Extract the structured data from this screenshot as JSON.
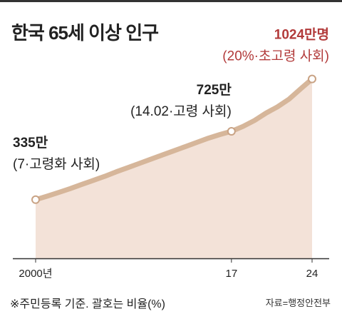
{
  "header": {
    "title": "한국 65세 이상 인구"
  },
  "chart_data": {
    "type": "area",
    "title": "한국 65세 이상 인구",
    "x": [
      2000,
      2001,
      2002,
      2003,
      2004,
      2005,
      2006,
      2007,
      2008,
      2009,
      2010,
      2011,
      2012,
      2013,
      2014,
      2015,
      2016,
      2017,
      2018,
      2019,
      2020,
      2021,
      2022,
      2023,
      2024
    ],
    "x_ticks": [
      {
        "x": 2000,
        "label": "2000년"
      },
      {
        "x": 2017,
        "label": "17"
      },
      {
        "x": 2024,
        "label": "24"
      }
    ],
    "series": [
      {
        "values": [
          335,
          355,
          376,
          398,
          422,
          445,
          468,
          494,
          518,
          542,
          566,
          590,
          614,
          638,
          662,
          686,
          707,
          725,
          753,
          787,
          829,
          865,
          909,
          967,
          1024
        ]
      }
    ],
    "units": "만명",
    "xlim": [
      2000,
      2024
    ],
    "ylim": [
      0,
      1100
    ],
    "grid": false,
    "legend": "none",
    "annotations": [
      {
        "x": 2000,
        "value_text": "335만",
        "label_text": "(7·고령화 사회)",
        "color": "#222222"
      },
      {
        "x": 2017,
        "value_text": "725만",
        "label_text": "(14.02·고령 사회)",
        "color": "#222222"
      },
      {
        "x": 2024,
        "value_text": "1024만명",
        "label_text": "(20%·초고령 사회)",
        "color": "#b23a3a"
      }
    ],
    "colors": {
      "fill": "#f3e2d8",
      "line": "#d6b69a",
      "marker_stroke": "#c9a385",
      "highlight": "#b23a3a"
    }
  },
  "footnote": "※주민등록 기준. 괄호는 비율(%)",
  "source": "자료=행정안전부"
}
